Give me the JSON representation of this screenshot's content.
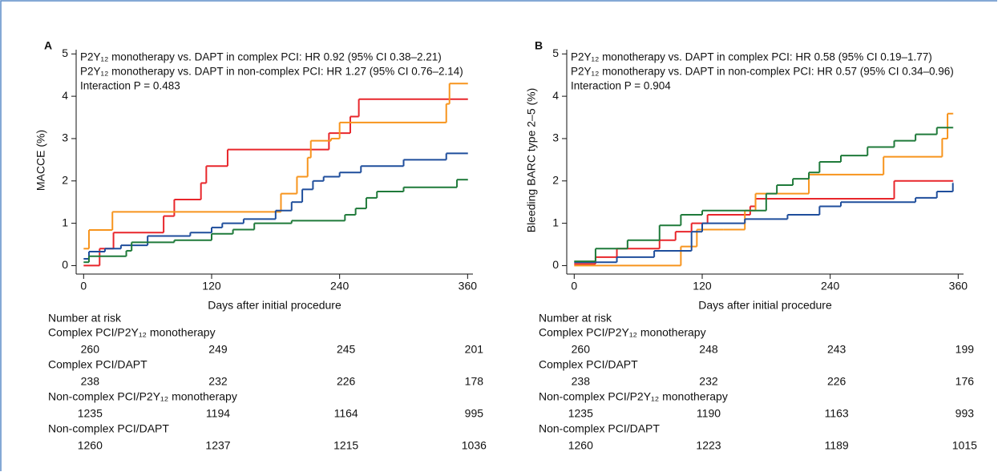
{
  "chart_data": [
    {
      "type": "step",
      "panel_label": "A",
      "annotations": [
        "P2Y₁₂ monotherapy vs. DAPT in complex PCI: HR 0.92 (95% CI 0.38–2.21)",
        "P2Y₁₂ monotherapy vs. DAPT in non-complex PCI: HR 1.27 (95% CI 0.76–2.14)",
        "Interaction P = 0.483"
      ],
      "y_label": "MACCE (%)",
      "x_label": "Days after initial procedure",
      "xlim": [
        -7,
        365
      ],
      "xticks": [
        0,
        120,
        240,
        360
      ],
      "ylim": [
        -0.2,
        5.1
      ],
      "yticks": [
        0,
        1,
        2,
        3,
        4,
        5
      ],
      "risk_table_title": "Number at risk",
      "series": [
        {
          "name": "Complex PCI/P2Y₁₂ monotherapy",
          "color": "#e8262b",
          "x": [
            0,
            15,
            28,
            75,
            85,
            110,
            115,
            135,
            230,
            250,
            258,
            360
          ],
          "values": [
            0,
            0.4,
            0.78,
            1.17,
            1.56,
            1.95,
            2.35,
            2.74,
            3.13,
            3.52,
            3.93,
            3.93
          ],
          "at_risk": [
            260,
            249,
            245,
            201
          ]
        },
        {
          "name": "Complex PCI/DAPT",
          "color": "#f7941d",
          "x": [
            0,
            5,
            27,
            185,
            200,
            210,
            213,
            232,
            240,
            340,
            343,
            360
          ],
          "values": [
            0.4,
            0.84,
            1.27,
            1.7,
            2.1,
            2.55,
            2.95,
            3.0,
            3.38,
            3.82,
            4.3,
            4.3
          ],
          "at_risk": [
            238,
            232,
            226,
            178
          ]
        },
        {
          "name": "Non-complex PCI/P2Y₁₂ monotherapy",
          "color": "#1f4e9c",
          "x": [
            0,
            5,
            20,
            35,
            60,
            100,
            120,
            130,
            150,
            180,
            195,
            205,
            215,
            225,
            240,
            260,
            300,
            340,
            360
          ],
          "values": [
            0.16,
            0.33,
            0.4,
            0.48,
            0.7,
            0.78,
            0.9,
            1.0,
            1.1,
            1.3,
            1.5,
            1.8,
            2.0,
            2.1,
            2.2,
            2.35,
            2.5,
            2.65,
            2.65
          ],
          "at_risk": [
            1235,
            1194,
            1164,
            995
          ]
        },
        {
          "name": "Non-complex PCI/DAPT",
          "color": "#1f7a3a",
          "x": [
            0,
            5,
            40,
            45,
            85,
            120,
            140,
            160,
            195,
            245,
            255,
            265,
            275,
            300,
            350,
            360
          ],
          "values": [
            0.08,
            0.22,
            0.35,
            0.55,
            0.6,
            0.75,
            0.85,
            1.0,
            1.06,
            1.2,
            1.35,
            1.6,
            1.75,
            1.85,
            2.03,
            2.03
          ],
          "at_risk": [
            1260,
            1237,
            1215,
            1036
          ]
        }
      ]
    },
    {
      "type": "step",
      "panel_label": "B",
      "annotations": [
        "P2Y₁₂ monotherapy vs. DAPT in complex PCI: HR 0.58 (95% CI 0.19–1.77)",
        "P2Y₁₂ monotherapy vs. DAPT in non-complex PCI: HR 0.57 (95% CI 0.34–0.96)",
        "Interaction P = 0.904"
      ],
      "y_label": "Bleeding BARC type 2–5 (%)",
      "x_label": "Days after initial procedure",
      "xlim": [
        -7,
        365
      ],
      "xticks": [
        0,
        120,
        240,
        360
      ],
      "ylim": [
        -0.2,
        5.1
      ],
      "yticks": [
        0,
        1,
        2,
        3,
        4,
        5
      ],
      "risk_table_title": "Number at risk",
      "series": [
        {
          "name": "Complex PCI/P2Y₁₂ monotherapy",
          "color": "#e8262b",
          "x": [
            0,
            20,
            40,
            80,
            95,
            110,
            125,
            165,
            170,
            300,
            355
          ],
          "values": [
            0.04,
            0.2,
            0.4,
            0.6,
            0.8,
            1.0,
            1.2,
            1.4,
            1.58,
            2.0,
            2.0
          ],
          "at_risk": [
            260,
            248,
            243,
            199
          ]
        },
        {
          "name": "Complex PCI/DAPT",
          "color": "#f7941d",
          "x": [
            0,
            100,
            115,
            140,
            160,
            170,
            220,
            290,
            345,
            350,
            355
          ],
          "values": [
            0,
            0.45,
            0.85,
            0.85,
            1.3,
            1.7,
            2.15,
            2.57,
            3.0,
            3.59,
            3.59
          ],
          "at_risk": [
            238,
            232,
            226,
            176
          ]
        },
        {
          "name": "Non-complex PCI/P2Y₁₂ monotherapy",
          "color": "#1f4e9c",
          "x": [
            0,
            40,
            75,
            110,
            120,
            160,
            200,
            230,
            250,
            320,
            340,
            355
          ],
          "values": [
            0.08,
            0.2,
            0.35,
            0.8,
            1.0,
            1.1,
            1.2,
            1.4,
            1.5,
            1.6,
            1.75,
            1.95
          ],
          "at_risk": [
            1235,
            1190,
            1163,
            993
          ]
        },
        {
          "name": "Non-complex PCI/DAPT",
          "color": "#1f7a3a",
          "x": [
            0,
            20,
            50,
            80,
            100,
            120,
            180,
            190,
            205,
            220,
            230,
            250,
            275,
            300,
            320,
            340,
            355
          ],
          "values": [
            0.1,
            0.4,
            0.6,
            0.95,
            1.2,
            1.3,
            1.7,
            1.9,
            2.05,
            2.2,
            2.45,
            2.6,
            2.8,
            2.95,
            3.1,
            3.26,
            3.26
          ],
          "at_risk": [
            1260,
            1223,
            1189,
            1015
          ]
        }
      ]
    }
  ]
}
